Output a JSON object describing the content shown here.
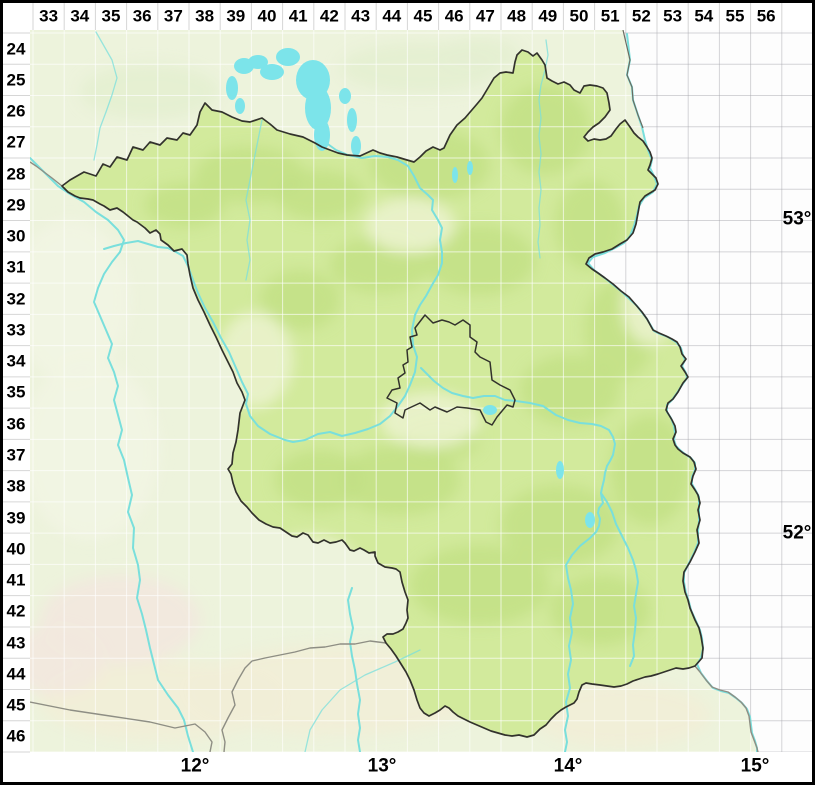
{
  "map_labels": {
    "column_labels": [
      "33",
      "34",
      "35",
      "36",
      "37",
      "38",
      "39",
      "40",
      "41",
      "42",
      "43",
      "44",
      "45",
      "46",
      "47",
      "48",
      "49",
      "50",
      "51",
      "52",
      "53",
      "54",
      "55",
      "56"
    ],
    "row_labels": [
      "24",
      "25",
      "26",
      "27",
      "28",
      "29",
      "30",
      "31",
      "32",
      "33",
      "34",
      "35",
      "36",
      "37",
      "38",
      "39",
      "40",
      "41",
      "42",
      "43",
      "44",
      "45",
      "46"
    ],
    "longitude_labels": [
      "12°",
      "13°",
      "14°",
      "15°"
    ],
    "latitude_labels": [
      "53°",
      "52°"
    ]
  },
  "colors": {
    "land_base": "#edf3dc",
    "brandenburg": "#d2ea9c",
    "forest_green": "#c2e085",
    "outside_area": "#fdfdfd",
    "water": "#79dfdc",
    "lake": "#7ce4ea",
    "border_dark": "#32322c",
    "border_gray": "#8e8e84",
    "grid_line": "#d6d6d6",
    "band_bg": "#ffffff",
    "frame": "#000000",
    "label_text": "#000000",
    "pale_patch": "#eaf2cc",
    "cream_patch": "#f1eed7",
    "pink_patch": "#f2e8de",
    "pale_west": "#f1f4e3",
    "mv_green": "#e4efd0"
  }
}
